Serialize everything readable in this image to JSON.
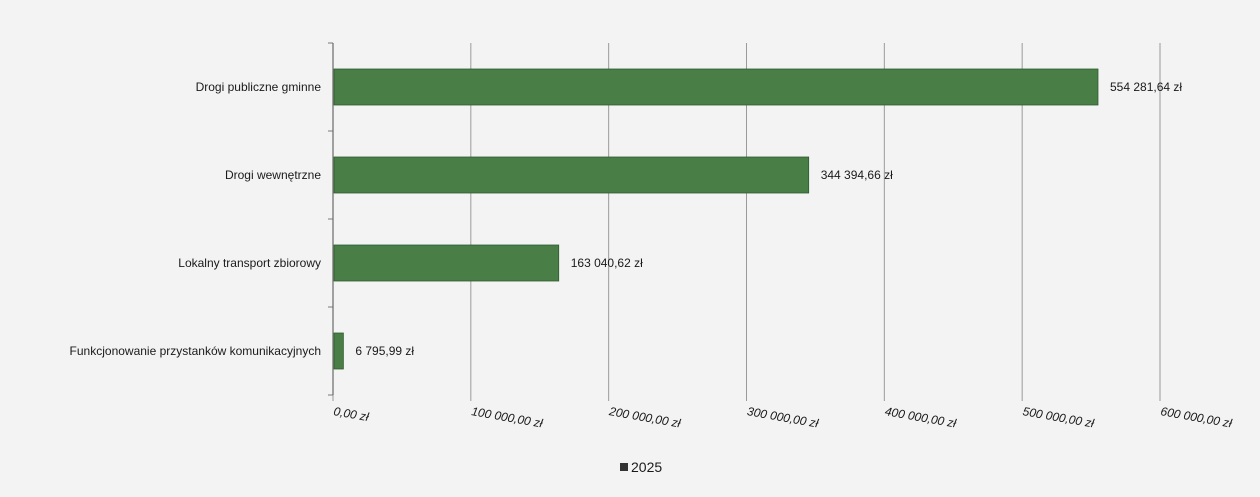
{
  "chart_data": {
    "type": "bar",
    "orientation": "horizontal",
    "categories": [
      "Drogi publiczne gminne",
      "Drogi wewnętrzne",
      "Lokalny transport zbiorowy",
      "Funkcjonowanie przystanków komunikacyjnych"
    ],
    "series": [
      {
        "name": "2025",
        "color": "#4a7e47",
        "values": [
          554281.64,
          344394.66,
          163040.62,
          6795.99
        ],
        "data_labels": [
          "554 281,64 zł",
          "344 394,66 zł",
          "163 040,62 zł",
          "6 795,99 zł"
        ]
      }
    ],
    "xlim": [
      0,
      600000
    ],
    "x_ticks": [
      0,
      100000,
      200000,
      300000,
      400000,
      500000,
      600000
    ],
    "x_tick_labels": [
      "0,00 zł",
      "100 000,00 zł",
      "200 000,00 zł",
      "300 000,00 zł",
      "400 000,00 zł",
      "500 000,00 zł",
      "600 000,00 zł"
    ],
    "grid": "vertical",
    "legend": {
      "position": "bottom",
      "entries": [
        "2025"
      ]
    },
    "title": "",
    "xlabel": "",
    "ylabel": ""
  }
}
